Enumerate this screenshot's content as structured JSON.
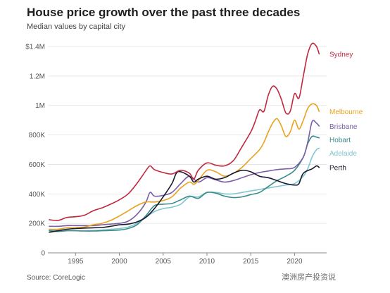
{
  "chart_data": {
    "type": "line",
    "title": "House price growth over the past three decades",
    "subtitle": "Median values by capital city",
    "source": "Source: CoreLogic",
    "ylim": [
      0,
      1400000
    ],
    "xlim": [
      1992,
      2023.5
    ],
    "grid": true,
    "y_ticks": [
      {
        "value": 0,
        "label": "0"
      },
      {
        "value": 200000,
        "label": "200K"
      },
      {
        "value": 400000,
        "label": "400K"
      },
      {
        "value": 600000,
        "label": "600K"
      },
      {
        "value": 800000,
        "label": "800K"
      },
      {
        "value": 1000000,
        "label": "1M"
      },
      {
        "value": 1200000,
        "label": "1.2M"
      },
      {
        "value": 1400000,
        "label": "$1.4M"
      }
    ],
    "x_ticks": [
      {
        "value": 1995,
        "label": "1995"
      },
      {
        "value": 2000,
        "label": "2000"
      },
      {
        "value": 2005,
        "label": "2005"
      },
      {
        "value": 2010,
        "label": "2010"
      },
      {
        "value": 2015,
        "label": "2015"
      },
      {
        "value": 2020,
        "label": "2020"
      }
    ],
    "series": [
      {
        "name": "Sydney",
        "color": "#c0283e",
        "points": [
          [
            1992,
            225000
          ],
          [
            1993,
            220000
          ],
          [
            1994,
            240000
          ],
          [
            1995,
            245000
          ],
          [
            1996,
            255000
          ],
          [
            1997,
            285000
          ],
          [
            1998,
            305000
          ],
          [
            1999,
            330000
          ],
          [
            2000,
            360000
          ],
          [
            2001,
            400000
          ],
          [
            2002,
            470000
          ],
          [
            2003,
            555000
          ],
          [
            2003.5,
            590000
          ],
          [
            2004,
            565000
          ],
          [
            2005,
            545000
          ],
          [
            2006,
            535000
          ],
          [
            2007,
            560000
          ],
          [
            2008,
            540000
          ],
          [
            2008.5,
            500000
          ],
          [
            2009,
            560000
          ],
          [
            2010,
            610000
          ],
          [
            2011,
            595000
          ],
          [
            2012,
            590000
          ],
          [
            2013,
            625000
          ],
          [
            2014,
            720000
          ],
          [
            2015,
            820000
          ],
          [
            2015.5,
            890000
          ],
          [
            2016,
            970000
          ],
          [
            2016.5,
            960000
          ],
          [
            2017,
            1070000
          ],
          [
            2017.5,
            1130000
          ],
          [
            2018,
            1110000
          ],
          [
            2018.5,
            1040000
          ],
          [
            2019,
            950000
          ],
          [
            2019.5,
            960000
          ],
          [
            2020,
            1080000
          ],
          [
            2020.5,
            1050000
          ],
          [
            2021,
            1200000
          ],
          [
            2021.5,
            1350000
          ],
          [
            2022,
            1420000
          ],
          [
            2022.5,
            1400000
          ],
          [
            2022.8,
            1350000
          ]
        ]
      },
      {
        "name": "Melbourne",
        "color": "#e8a21d",
        "points": [
          [
            1992,
            160000
          ],
          [
            1993,
            160000
          ],
          [
            1994,
            170000
          ],
          [
            1995,
            170000
          ],
          [
            1996,
            175000
          ],
          [
            1997,
            190000
          ],
          [
            1998,
            200000
          ],
          [
            1999,
            220000
          ],
          [
            2000,
            250000
          ],
          [
            2001,
            285000
          ],
          [
            2002,
            320000
          ],
          [
            2003,
            345000
          ],
          [
            2004,
            345000
          ],
          [
            2005,
            355000
          ],
          [
            2006,
            380000
          ],
          [
            2007,
            440000
          ],
          [
            2008,
            480000
          ],
          [
            2008.5,
            465000
          ],
          [
            2009,
            490000
          ],
          [
            2010,
            560000
          ],
          [
            2011,
            550000
          ],
          [
            2012,
            520000
          ],
          [
            2013,
            540000
          ],
          [
            2014,
            580000
          ],
          [
            2015,
            640000
          ],
          [
            2016,
            700000
          ],
          [
            2016.5,
            750000
          ],
          [
            2017,
            820000
          ],
          [
            2017.5,
            880000
          ],
          [
            2018,
            910000
          ],
          [
            2018.5,
            860000
          ],
          [
            2019,
            790000
          ],
          [
            2019.5,
            820000
          ],
          [
            2020,
            900000
          ],
          [
            2020.5,
            840000
          ],
          [
            2021,
            900000
          ],
          [
            2021.5,
            980000
          ],
          [
            2022,
            1010000
          ],
          [
            2022.5,
            1000000
          ],
          [
            2022.8,
            960000
          ]
        ]
      },
      {
        "name": "Brisbane",
        "color": "#7b5ea7",
        "points": [
          [
            1992,
            180000
          ],
          [
            1993,
            180000
          ],
          [
            1994,
            185000
          ],
          [
            1995,
            185000
          ],
          [
            1996,
            185000
          ],
          [
            1997,
            185000
          ],
          [
            1998,
            190000
          ],
          [
            1999,
            195000
          ],
          [
            2000,
            200000
          ],
          [
            2001,
            215000
          ],
          [
            2002,
            260000
          ],
          [
            2003,
            340000
          ],
          [
            2003.5,
            410000
          ],
          [
            2004,
            385000
          ],
          [
            2005,
            390000
          ],
          [
            2006,
            410000
          ],
          [
            2007,
            470000
          ],
          [
            2008,
            520000
          ],
          [
            2009,
            480000
          ],
          [
            2010,
            510000
          ],
          [
            2011,
            495000
          ],
          [
            2012,
            480000
          ],
          [
            2013,
            490000
          ],
          [
            2014,
            510000
          ],
          [
            2015,
            530000
          ],
          [
            2016,
            545000
          ],
          [
            2017,
            555000
          ],
          [
            2018,
            565000
          ],
          [
            2019,
            570000
          ],
          [
            2020,
            580000
          ],
          [
            2021,
            650000
          ],
          [
            2021.5,
            750000
          ],
          [
            2022,
            890000
          ],
          [
            2022.5,
            880000
          ],
          [
            2022.8,
            860000
          ]
        ]
      },
      {
        "name": "Hobart",
        "color": "#3b8b8b",
        "points": [
          [
            1992,
            150000
          ],
          [
            1993,
            145000
          ],
          [
            1994,
            150000
          ],
          [
            1995,
            150000
          ],
          [
            1996,
            148000
          ],
          [
            1997,
            148000
          ],
          [
            1998,
            150000
          ],
          [
            1999,
            152000
          ],
          [
            2000,
            155000
          ],
          [
            2001,
            165000
          ],
          [
            2002,
            190000
          ],
          [
            2003,
            250000
          ],
          [
            2004,
            320000
          ],
          [
            2005,
            330000
          ],
          [
            2006,
            335000
          ],
          [
            2007,
            360000
          ],
          [
            2008,
            385000
          ],
          [
            2009,
            370000
          ],
          [
            2010,
            410000
          ],
          [
            2011,
            405000
          ],
          [
            2012,
            385000
          ],
          [
            2013,
            375000
          ],
          [
            2014,
            380000
          ],
          [
            2015,
            395000
          ],
          [
            2016,
            410000
          ],
          [
            2017,
            450000
          ],
          [
            2018,
            490000
          ],
          [
            2019,
            520000
          ],
          [
            2020,
            560000
          ],
          [
            2021,
            650000
          ],
          [
            2021.5,
            740000
          ],
          [
            2022,
            790000
          ],
          [
            2022.5,
            785000
          ],
          [
            2022.8,
            780000
          ]
        ]
      },
      {
        "name": "Adelaide",
        "color": "#7fc7d3",
        "points": [
          [
            1992,
            155000
          ],
          [
            1993,
            150000
          ],
          [
            1994,
            150000
          ],
          [
            1995,
            150000
          ],
          [
            1996,
            150000
          ],
          [
            1997,
            152000
          ],
          [
            1998,
            155000
          ],
          [
            1999,
            160000
          ],
          [
            2000,
            165000
          ],
          [
            2001,
            175000
          ],
          [
            2002,
            200000
          ],
          [
            2003,
            240000
          ],
          [
            2004,
            280000
          ],
          [
            2005,
            300000
          ],
          [
            2006,
            310000
          ],
          [
            2007,
            330000
          ],
          [
            2008,
            380000
          ],
          [
            2009,
            380000
          ],
          [
            2010,
            410000
          ],
          [
            2011,
            410000
          ],
          [
            2012,
            400000
          ],
          [
            2013,
            400000
          ],
          [
            2014,
            410000
          ],
          [
            2015,
            420000
          ],
          [
            2016,
            430000
          ],
          [
            2017,
            440000
          ],
          [
            2018,
            450000
          ],
          [
            2019,
            460000
          ],
          [
            2020,
            470000
          ],
          [
            2021,
            520000
          ],
          [
            2021.5,
            570000
          ],
          [
            2022,
            650000
          ],
          [
            2022.5,
            700000
          ],
          [
            2022.8,
            710000
          ]
        ]
      },
      {
        "name": "Perth",
        "color": "#1a1a2e",
        "points": [
          [
            1992,
            140000
          ],
          [
            1993,
            150000
          ],
          [
            1994,
            160000
          ],
          [
            1995,
            165000
          ],
          [
            1996,
            168000
          ],
          [
            1997,
            170000
          ],
          [
            1998,
            172000
          ],
          [
            1999,
            180000
          ],
          [
            2000,
            190000
          ],
          [
            2001,
            195000
          ],
          [
            2002,
            210000
          ],
          [
            2003,
            240000
          ],
          [
            2004,
            300000
          ],
          [
            2005,
            380000
          ],
          [
            2006,
            470000
          ],
          [
            2006.5,
            540000
          ],
          [
            2007,
            550000
          ],
          [
            2008,
            520000
          ],
          [
            2008.5,
            480000
          ],
          [
            2009,
            500000
          ],
          [
            2010,
            520000
          ],
          [
            2011,
            500000
          ],
          [
            2012,
            510000
          ],
          [
            2013,
            540000
          ],
          [
            2014,
            560000
          ],
          [
            2015,
            550000
          ],
          [
            2016,
            520000
          ],
          [
            2017,
            510000
          ],
          [
            2018,
            490000
          ],
          [
            2019,
            470000
          ],
          [
            2020,
            460000
          ],
          [
            2020.5,
            470000
          ],
          [
            2021,
            540000
          ],
          [
            2022,
            570000
          ],
          [
            2022.5,
            590000
          ],
          [
            2022.8,
            580000
          ]
        ]
      }
    ]
  },
  "watermark": "澳洲房产投资说"
}
